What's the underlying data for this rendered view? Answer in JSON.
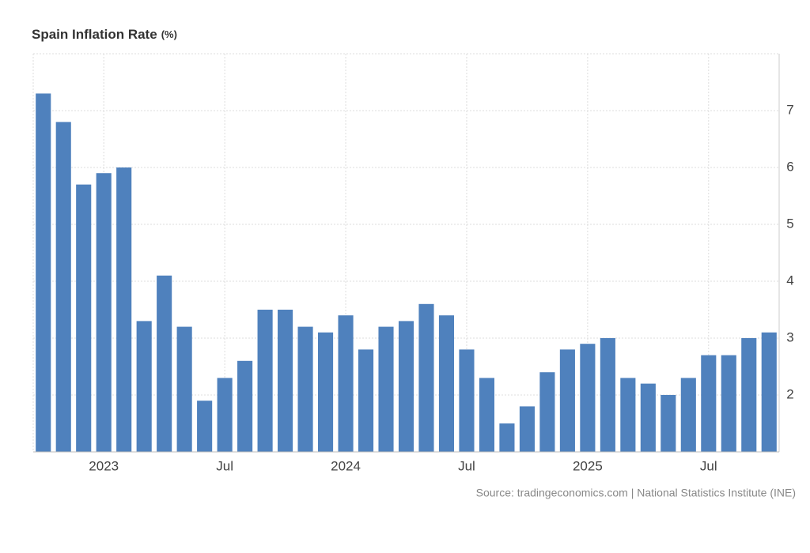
{
  "chart_data": {
    "type": "bar",
    "title": "Spain Inflation Rate",
    "title_unit": "(%)",
    "source": "Source: tradingeconomics.com | National Statistics Institute (INE)",
    "categories": [
      null,
      null,
      null,
      "2023",
      null,
      null,
      null,
      null,
      null,
      "Jul",
      null,
      null,
      null,
      null,
      null,
      "2024",
      null,
      null,
      null,
      null,
      null,
      "Jul",
      null,
      null,
      null,
      null,
      null,
      "2025",
      null,
      null,
      null,
      null,
      null,
      "Jul",
      null,
      null,
      null
    ],
    "values": [
      7.3,
      6.8,
      5.7,
      5.9,
      6.0,
      3.3,
      4.1,
      3.2,
      1.9,
      2.3,
      2.6,
      3.5,
      3.5,
      3.2,
      3.1,
      3.4,
      2.8,
      3.2,
      3.3,
      3.6,
      3.4,
      2.8,
      2.3,
      1.5,
      1.8,
      2.4,
      2.8,
      2.9,
      3.0,
      2.3,
      2.2,
      2.0,
      2.3,
      2.7,
      2.7,
      3.0,
      3.1
    ],
    "color": "#4f81bd",
    "ylim": [
      1,
      8
    ],
    "yticks": [
      2,
      3,
      4,
      5,
      6,
      7
    ],
    "grid": true,
    "y_axis_side": "right"
  }
}
